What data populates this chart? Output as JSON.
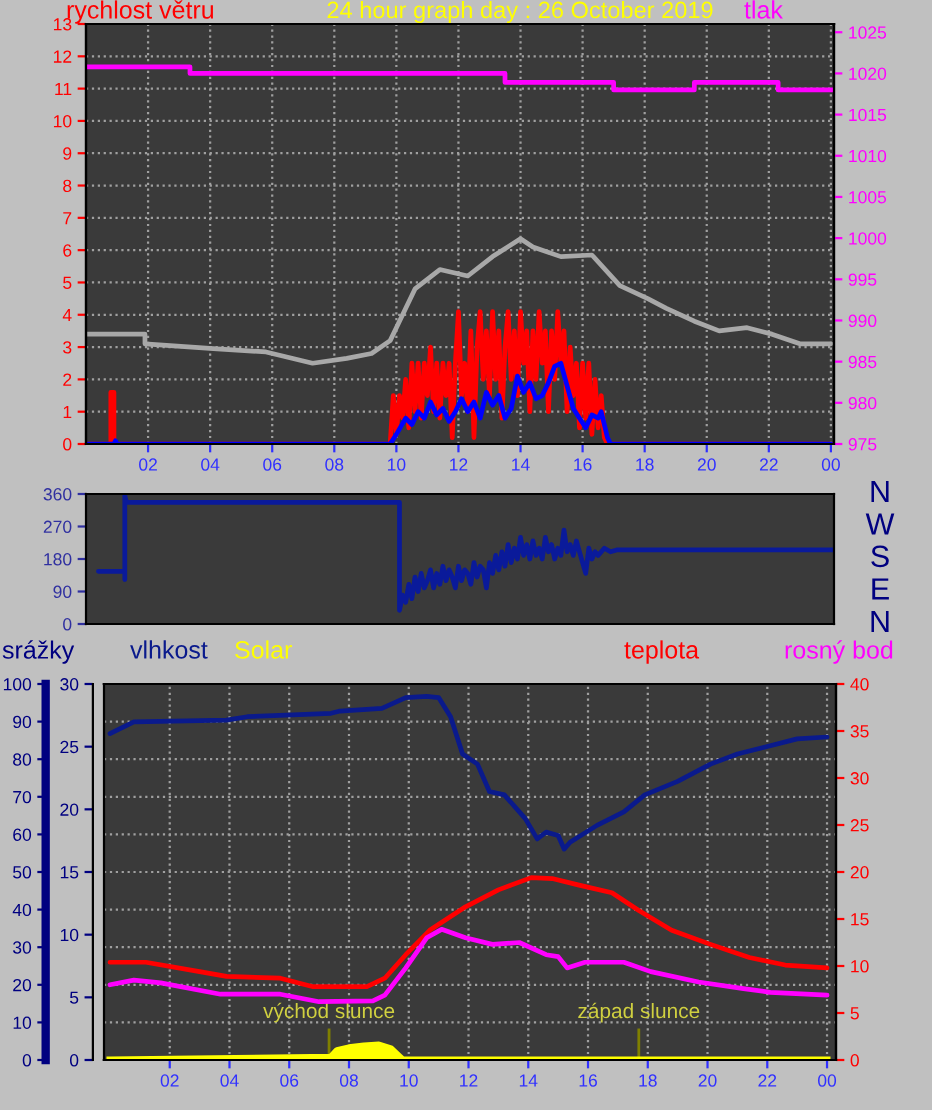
{
  "chart_data": [
    {
      "type": "line",
      "title": "24 hour graph day : 26 October 2019",
      "ylabel": "rychlost větru",
      "y2label": "tlak",
      "xlim": [
        "2019-10-26T00:00",
        "2019-10-27T00:06"
      ],
      "xticks": [
        {
          "value": "2019-10-26T02:00",
          "label": "02"
        },
        {
          "value": "2019-10-26T04:00",
          "label": "04"
        },
        {
          "value": "2019-10-26T06:00",
          "label": "06"
        },
        {
          "value": "2019-10-26T08:00",
          "label": "08"
        },
        {
          "value": "2019-10-26T10:00",
          "label": "10"
        },
        {
          "value": "2019-10-26T12:00",
          "label": "12"
        },
        {
          "value": "2019-10-26T14:00",
          "label": "14"
        },
        {
          "value": "2019-10-26T16:00",
          "label": "16"
        },
        {
          "value": "2019-10-26T18:00",
          "label": "18"
        },
        {
          "value": "2019-10-26T20:00",
          "label": "20"
        },
        {
          "value": "2019-10-26T22:00",
          "label": "22"
        },
        {
          "value": "2019-10-27T00:00",
          "label": "00"
        }
      ],
      "ylim": [
        0,
        13
      ],
      "yticks": [
        0,
        1,
        2,
        3,
        4,
        5,
        6,
        7,
        8,
        9,
        10,
        11,
        12,
        13
      ],
      "y2lim": [
        975,
        1026
      ],
      "y2ticks": [
        975,
        980,
        985,
        990,
        995,
        1000,
        1005,
        1010,
        1015,
        1020,
        1025
      ],
      "grid": true,
      "series": [
        {
          "color": "#ff00ff",
          "axis": "y2",
          "x": [
            "2019-10-26T00:00",
            "2019-10-26T03:21",
            "2019-10-26T03:21",
            "2019-10-26T13:30",
            "2019-10-26T13:30",
            "2019-10-26T17:00",
            "2019-10-26T17:00",
            "2019-10-26T19:36",
            "2019-10-26T19:36",
            "2019-10-26T22:18",
            "2019-10-26T22:18",
            "2019-10-27T00:06"
          ],
          "values": [
            1020.8,
            1020.8,
            1020,
            1020,
            1018.9,
            1018.9,
            1018,
            1018,
            1018.9,
            1018.9,
            1018,
            1018
          ]
        },
        {
          "color": "#a8a8a8",
          "x": [
            "2019-10-26T00:00",
            "2019-10-26T01:54",
            "2019-10-26T01:54",
            "2019-10-26T04:06",
            "2019-10-26T05:48",
            "2019-10-26T07:18",
            "2019-10-26T08:24",
            "2019-10-26T09:12",
            "2019-10-26T09:48",
            "2019-10-26T10:06",
            "2019-10-26T10:36",
            "2019-10-26T11:24",
            "2019-10-26T12:18",
            "2019-10-26T13:06",
            "2019-10-26T14:00",
            "2019-10-26T14:24",
            "2019-10-26T15:18",
            "2019-10-26T16:18",
            "2019-10-26T17:12",
            "2019-10-26T18:06",
            "2019-10-26T18:42",
            "2019-10-26T19:36",
            "2019-10-26T20:24",
            "2019-10-26T21:18",
            "2019-10-26T22:06",
            "2019-10-26T23:00",
            "2019-10-27T00:00"
          ],
          "values": [
            3.4,
            3.4,
            3.1,
            2.95,
            2.85,
            2.5,
            2.65,
            2.8,
            3.2,
            3.8,
            4.8,
            5.4,
            5.2,
            5.8,
            6.35,
            6.1,
            5.8,
            5.85,
            4.9,
            4.5,
            4.2,
            3.8,
            3.5,
            3.6,
            3.4,
            3.1,
            3.1
          ]
        },
        {
          "color": "#ff0000",
          "x": [
            "2019-10-26T00:00",
            "2019-10-26T00:48",
            "2019-10-26T00:48",
            "2019-10-26T00:54",
            "2019-10-26T00:54",
            "2019-10-26T09:48",
            "2019-10-26T09:54",
            "2019-10-26T10:00",
            "2019-10-26T10:06",
            "2019-10-26T10:12",
            "2019-10-26T10:18",
            "2019-10-26T10:24",
            "2019-10-26T10:30",
            "2019-10-26T10:36",
            "2019-10-26T10:42",
            "2019-10-26T10:48",
            "2019-10-26T10:54",
            "2019-10-26T11:00",
            "2019-10-26T11:06",
            "2019-10-26T11:12",
            "2019-10-26T11:18",
            "2019-10-26T11:24",
            "2019-10-26T11:30",
            "2019-10-26T11:36",
            "2019-10-26T11:42",
            "2019-10-26T11:48",
            "2019-10-26T11:54",
            "2019-10-26T12:00",
            "2019-10-26T12:06",
            "2019-10-26T12:12",
            "2019-10-26T12:18",
            "2019-10-26T12:24",
            "2019-10-26T12:30",
            "2019-10-26T12:36",
            "2019-10-26T12:42",
            "2019-10-26T12:48",
            "2019-10-26T12:54",
            "2019-10-26T13:00",
            "2019-10-26T13:06",
            "2019-10-26T13:12",
            "2019-10-26T13:18",
            "2019-10-26T13:24",
            "2019-10-26T13:30",
            "2019-10-26T13:36",
            "2019-10-26T13:42",
            "2019-10-26T13:48",
            "2019-10-26T13:54",
            "2019-10-26T14:00",
            "2019-10-26T14:06",
            "2019-10-26T14:12",
            "2019-10-26T14:18",
            "2019-10-26T14:24",
            "2019-10-26T14:30",
            "2019-10-26T14:36",
            "2019-10-26T14:42",
            "2019-10-26T14:48",
            "2019-10-26T14:54",
            "2019-10-26T15:00",
            "2019-10-26T15:06",
            "2019-10-26T15:12",
            "2019-10-26T15:18",
            "2019-10-26T15:24",
            "2019-10-26T15:30",
            "2019-10-26T15:36",
            "2019-10-26T15:42",
            "2019-10-26T15:48",
            "2019-10-26T15:54",
            "2019-10-26T16:00",
            "2019-10-26T16:06",
            "2019-10-26T16:12",
            "2019-10-26T16:18",
            "2019-10-26T16:24",
            "2019-10-26T16:30",
            "2019-10-26T16:36",
            "2019-10-26T16:42",
            "2019-10-26T16:48",
            "2019-10-27T00:00"
          ],
          "values": [
            0,
            0,
            1.6,
            1.6,
            0,
            0,
            1.5,
            0.3,
            1.5,
            0.8,
            2.0,
            0.5,
            2.5,
            1.0,
            2.5,
            0.8,
            2.5,
            1.5,
            3.0,
            1.0,
            2.5,
            0.8,
            2.5,
            1.5,
            2.5,
            0.2,
            2.5,
            4.1,
            1.5,
            2.5,
            1.0,
            3.5,
            0.2,
            3.0,
            4.1,
            2.0,
            3.5,
            1.5,
            4.1,
            2.0,
            3.5,
            0.8,
            3.0,
            4.1,
            2.0,
            3.5,
            1.5,
            4.1,
            2.5,
            3.5,
            1.0,
            3.5,
            2.0,
            4.1,
            2.5,
            3.5,
            1.0,
            3.5,
            2.0,
            4.1,
            2.5,
            3.5,
            1.0,
            3.0,
            1.5,
            2.5,
            0.5,
            2.5,
            0.8,
            2.5,
            0.3,
            2.0,
            0.5,
            1.5,
            0.2,
            0,
            0
          ]
        },
        {
          "color": "#0000ff",
          "x": [
            "2019-10-26T00:00",
            "2019-10-26T00:54",
            "2019-10-26T00:57",
            "2019-10-26T01:00",
            "2019-10-26T09:48",
            "2019-10-26T10:00",
            "2019-10-26T10:18",
            "2019-10-26T10:30",
            "2019-10-26T10:42",
            "2019-10-26T10:54",
            "2019-10-26T11:06",
            "2019-10-26T11:18",
            "2019-10-26T11:30",
            "2019-10-26T11:42",
            "2019-10-26T11:54",
            "2019-10-26T12:06",
            "2019-10-26T12:18",
            "2019-10-26T12:30",
            "2019-10-26T12:42",
            "2019-10-26T12:54",
            "2019-10-26T13:06",
            "2019-10-26T13:18",
            "2019-10-26T13:30",
            "2019-10-26T13:42",
            "2019-10-26T13:54",
            "2019-10-26T14:06",
            "2019-10-26T14:18",
            "2019-10-26T14:30",
            "2019-10-26T14:42",
            "2019-10-26T14:54",
            "2019-10-26T15:06",
            "2019-10-26T15:18",
            "2019-10-26T15:30",
            "2019-10-26T15:42",
            "2019-10-26T15:54",
            "2019-10-26T16:06",
            "2019-10-26T16:18",
            "2019-10-26T16:30",
            "2019-10-26T16:36",
            "2019-10-26T16:48",
            "2019-10-26T16:54",
            "2019-10-27T00:00"
          ],
          "values": [
            0,
            0,
            0.1,
            0,
            0,
            0.3,
            0.8,
            0.6,
            1.0,
            0.8,
            1.3,
            0.9,
            1.1,
            0.7,
            1.0,
            1.4,
            1.0,
            1.3,
            0.8,
            1.6,
            1.2,
            1.5,
            0.8,
            1.1,
            2.1,
            1.6,
            1.9,
            1.4,
            1.5,
            1.9,
            2.4,
            2.5,
            1.8,
            1.1,
            0.8,
            0.5,
            0.9,
            0.8,
            1.0,
            0.2,
            0,
            0
          ]
        }
      ]
    },
    {
      "type": "line",
      "xlim": [
        "2019-10-26T00:00",
        "2019-10-27T00:06"
      ],
      "ylim": [
        0,
        360
      ],
      "yticks": [
        0,
        90,
        180,
        270,
        360
      ],
      "annotations": [
        "N",
        "W",
        "S",
        "E",
        "N"
      ],
      "tick_labels": "y",
      "series": [
        {
          "color": "#0a1a9a",
          "x": [
            "2019-10-26T00:24",
            "2019-10-26T01:15",
            "2019-10-26T01:15",
            "2019-10-26T01:15",
            "2019-10-26T01:18",
            "2019-10-26T10:06",
            "2019-10-26T10:06",
            "2019-10-26T10:12",
            "2019-10-26T10:18",
            "2019-10-26T10:24",
            "2019-10-26T10:30",
            "2019-10-26T10:36",
            "2019-10-26T10:42",
            "2019-10-26T10:48",
            "2019-10-26T10:54",
            "2019-10-26T11:00",
            "2019-10-26T11:06",
            "2019-10-26T11:12",
            "2019-10-26T11:18",
            "2019-10-26T11:24",
            "2019-10-26T11:30",
            "2019-10-26T11:36",
            "2019-10-26T11:42",
            "2019-10-26T11:48",
            "2019-10-26T11:54",
            "2019-10-26T12:00",
            "2019-10-26T12:06",
            "2019-10-26T12:12",
            "2019-10-26T12:18",
            "2019-10-26T12:24",
            "2019-10-26T12:30",
            "2019-10-26T12:36",
            "2019-10-26T12:42",
            "2019-10-26T12:48",
            "2019-10-26T12:54",
            "2019-10-26T13:00",
            "2019-10-26T13:06",
            "2019-10-26T13:12",
            "2019-10-26T13:18",
            "2019-10-26T13:24",
            "2019-10-26T13:30",
            "2019-10-26T13:36",
            "2019-10-26T13:42",
            "2019-10-26T13:48",
            "2019-10-26T13:54",
            "2019-10-26T14:00",
            "2019-10-26T14:06",
            "2019-10-26T14:12",
            "2019-10-26T14:18",
            "2019-10-26T14:24",
            "2019-10-26T14:30",
            "2019-10-26T14:36",
            "2019-10-26T14:42",
            "2019-10-26T14:48",
            "2019-10-26T14:54",
            "2019-10-26T15:00",
            "2019-10-26T15:06",
            "2019-10-26T15:12",
            "2019-10-26T15:18",
            "2019-10-26T15:24",
            "2019-10-26T15:30",
            "2019-10-26T15:36",
            "2019-10-26T15:42",
            "2019-10-26T15:48",
            "2019-10-26T15:54",
            "2019-10-26T16:00",
            "2019-10-26T16:06",
            "2019-10-26T16:12",
            "2019-10-26T16:18",
            "2019-10-26T16:24",
            "2019-10-26T16:30",
            "2019-10-26T16:42",
            "2019-10-26T16:54",
            "2019-10-26T17:06",
            "2019-10-26T17:18",
            "2019-10-27T00:06"
          ],
          "values": [
            146,
            146,
            123,
            356,
            337,
            337,
            38,
            80,
            60,
            110,
            70,
            130,
            90,
            140,
            100,
            120,
            150,
            100,
            140,
            110,
            160,
            120,
            150,
            130,
            100,
            160,
            120,
            150,
            140,
            110,
            170,
            130,
            160,
            150,
            100,
            170,
            140,
            190,
            150,
            200,
            160,
            220,
            170,
            210,
            180,
            240,
            190,
            220,
            180,
            230,
            190,
            210,
            180,
            240,
            200,
            220,
            180,
            210,
            190,
            260,
            200,
            220,
            190,
            230,
            200,
            170,
            140,
            210,
            180,
            200,
            190,
            210,
            200,
            205,
            205,
            205
          ]
        }
      ]
    },
    {
      "type": "line",
      "y3label": "srážky",
      "legend": "top",
      "xlim": [
        "2019-10-25T23:48",
        "2019-10-27T00:18"
      ],
      "xticks": [
        {
          "value": "2019-10-26T02:00",
          "label": "02"
        },
        {
          "value": "2019-10-26T04:00",
          "label": "04"
        },
        {
          "value": "2019-10-26T06:00",
          "label": "06"
        },
        {
          "value": "2019-10-26T08:00",
          "label": "08"
        },
        {
          "value": "2019-10-26T10:00",
          "label": "10"
        },
        {
          "value": "2019-10-26T12:00",
          "label": "12"
        },
        {
          "value": "2019-10-26T14:00",
          "label": "14"
        },
        {
          "value": "2019-10-26T16:00",
          "label": "16"
        },
        {
          "value": "2019-10-26T18:00",
          "label": "18"
        },
        {
          "value": "2019-10-26T20:00",
          "label": "20"
        },
        {
          "value": "2019-10-26T22:00",
          "label": "22"
        },
        {
          "value": "2019-10-27T00:00",
          "label": "00"
        }
      ],
      "ylim": [
        0,
        100
      ],
      "yticks": [
        0,
        10,
        20,
        30,
        40,
        50,
        60,
        70,
        80,
        90,
        100
      ],
      "y3lim": [
        0,
        30
      ],
      "y3ticks": [
        0,
        5,
        10,
        15,
        20,
        25,
        30
      ],
      "y2lim": [
        0,
        40
      ],
      "y2ticks": [
        0,
        5,
        10,
        15,
        20,
        25,
        30,
        35,
        40
      ],
      "grid": true,
      "ref_lines": [
        {
          "axis": "x",
          "value": "2019-10-26T07:20",
          "label": "východ slunce",
          "color": "#808000"
        },
        {
          "axis": "x",
          "value": "2019-10-26T17:42",
          "label": "západ slunce",
          "color": "#808000"
        }
      ],
      "series": [
        {
          "name": "vlhkost",
          "color": "#0a1a8c",
          "x": [
            "2019-10-26T00:00",
            "2019-10-26T00:48",
            "2019-10-26T03:54",
            "2019-10-26T04:36",
            "2019-10-26T07:24",
            "2019-10-26T07:42",
            "2019-10-26T09:06",
            "2019-10-26T09:54",
            "2019-10-26T10:36",
            "2019-10-26T11:00",
            "2019-10-26T11:24",
            "2019-10-26T11:48",
            "2019-10-26T12:18",
            "2019-10-26T12:42",
            "2019-10-26T13:12",
            "2019-10-26T13:54",
            "2019-10-26T14:18",
            "2019-10-26T14:36",
            "2019-10-26T15:00",
            "2019-10-26T15:12",
            "2019-10-26T15:24",
            "2019-10-26T16:18",
            "2019-10-26T17:12",
            "2019-10-26T17:54",
            "2019-10-26T19:00",
            "2019-10-26T20:06",
            "2019-10-26T21:00",
            "2019-10-26T21:54",
            "2019-10-26T23:00",
            "2019-10-27T00:00"
          ],
          "values": [
            86.8,
            89.9,
            90.4,
            91.3,
            92.2,
            92.8,
            93.5,
            96.4,
            96.7,
            96.4,
            91.3,
            81.4,
            78.7,
            71.4,
            70.5,
            64.2,
            58.8,
            60.6,
            59.7,
            56.1,
            57.9,
            62.4,
            66,
            70.5,
            74.1,
            78.7,
            81.4,
            83.2,
            85.4,
            85.9
          ]
        },
        {
          "name": "Solar",
          "type": "area",
          "axis": "y2",
          "color": "#ffff00",
          "x": [
            "2019-10-26T00:00",
            "2019-10-26T07:24",
            "2019-10-26T07:36",
            "2019-10-26T08:00",
            "2019-10-26T08:30",
            "2019-10-26T09:00",
            "2019-10-26T09:24",
            "2019-10-26T09:42",
            "2019-10-26T09:48",
            "2019-10-27T00:00"
          ],
          "values": [
            0,
            0.3,
            1.0,
            1.3,
            1.5,
            1.6,
            1.2,
            0.3,
            0,
            0
          ]
        },
        {
          "name": "teplota",
          "axis": "y2",
          "color": "#ff0000",
          "x": [
            "2019-10-26T00:00",
            "2019-10-26T01:12",
            "2019-10-26T03:00",
            "2019-10-26T03:54",
            "2019-10-26T05:42",
            "2019-10-26T06:48",
            "2019-10-26T08:36",
            "2019-10-26T09:12",
            "2019-10-26T09:54",
            "2019-10-26T10:42",
            "2019-10-26T11:54",
            "2019-10-26T13:00",
            "2019-10-26T14:06",
            "2019-10-26T14:48",
            "2019-10-26T15:42",
            "2019-10-26T16:48",
            "2019-10-26T17:42",
            "2019-10-26T18:48",
            "2019-10-26T20:06",
            "2019-10-26T21:24",
            "2019-10-26T22:36",
            "2019-10-27T00:00"
          ],
          "values": [
            10.4,
            10.4,
            9.4,
            8.9,
            8.7,
            7.8,
            7.8,
            8.7,
            11.2,
            13.8,
            16.3,
            18.1,
            19.4,
            19.3,
            18.6,
            17.8,
            15.9,
            13.8,
            12.3,
            10.9,
            10.1,
            9.8
          ]
        },
        {
          "name": "rosný bod",
          "axis": "y2",
          "color": "#ff00ff",
          "x": [
            "2019-10-26T00:00",
            "2019-10-26T00:48",
            "2019-10-26T01:42",
            "2019-10-26T03:42",
            "2019-10-26T05:42",
            "2019-10-26T07:00",
            "2019-10-26T08:48",
            "2019-10-26T09:12",
            "2019-10-26T09:54",
            "2019-10-26T10:36",
            "2019-10-26T11:06",
            "2019-10-26T11:54",
            "2019-10-26T12:48",
            "2019-10-26T13:42",
            "2019-10-26T14:36",
            "2019-10-26T15:00",
            "2019-10-26T15:18",
            "2019-10-26T15:54",
            "2019-10-26T17:12",
            "2019-10-26T18:06",
            "2019-10-26T19:42",
            "2019-10-26T21:12",
            "2019-10-26T22:06",
            "2019-10-27T00:00"
          ],
          "values": [
            8,
            8.5,
            8.2,
            7.0,
            7.0,
            6.2,
            6.3,
            6.9,
            9.8,
            13,
            13.9,
            13,
            12.3,
            12.5,
            11.2,
            11,
            9.8,
            10.4,
            10.4,
            9.4,
            8.3,
            7.6,
            7.2,
            6.9
          ]
        }
      ]
    }
  ]
}
